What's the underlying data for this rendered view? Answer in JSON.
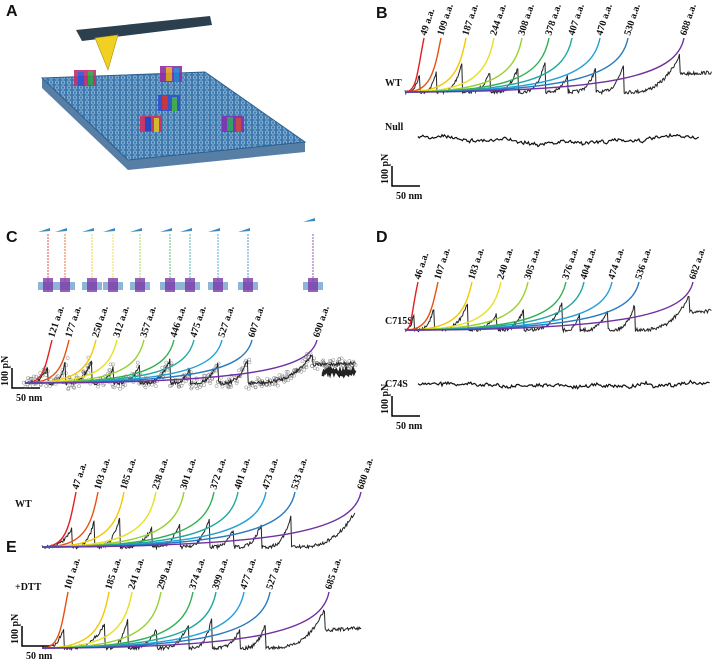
{
  "panels": {
    "A": {
      "label": "A"
    },
    "B": {
      "label": "B",
      "traces": [
        {
          "name": "WT",
          "peaks": [
            "49 a.a.",
            "109 a.a.",
            "187 a.a.",
            "244 a.a.",
            "308 a.a.",
            "378 a.a.",
            "407 a.a.",
            "470 a.a.",
            "530 a.a.",
            "688 a.a."
          ]
        },
        {
          "name": "Null"
        }
      ],
      "scale": {
        "force": "100 pN",
        "distance": "50 nm"
      }
    },
    "C": {
      "label": "C",
      "traces": [
        {
          "peaks": [
            "121 a.a.",
            "177 a.a.",
            "250 a.a.",
            "312 a.a.",
            "357 a.a.",
            "446 a.a.",
            "475 a.a.",
            "527 a.a.",
            "607 a.a.",
            "690 a.a."
          ]
        }
      ],
      "scale": {
        "force": "100 pN",
        "distance": "50 nm"
      }
    },
    "D": {
      "label": "D",
      "traces": [
        {
          "name": "C715S",
          "peaks": [
            "46 a.a.",
            "107 a.a.",
            "183 a.a.",
            "240 a.a.",
            "305 a.a.",
            "376 a.a.",
            "404 a.a.",
            "474 a.a.",
            "536 a.a.",
            "682 a.a."
          ]
        },
        {
          "name": "C74S"
        }
      ],
      "scale": {
        "force": "100 pN",
        "distance": "50 nm"
      }
    },
    "E": {
      "label": "E",
      "traces": [
        {
          "name": "WT",
          "peaks": [
            "47 a.a.",
            "103 a.a.",
            "185 a.a.",
            "238 a.a.",
            "301 a.a.",
            "372 a.a.",
            "401 a.a.",
            "473 a.a.",
            "533 a.a.",
            "680 a.a."
          ]
        },
        {
          "name": "+DTT",
          "peaks": [
            "101 a.a.",
            "185 a.a.",
            "241 a.a.",
            "299 a.a.",
            "374 a.a.",
            "399 a.a.",
            "477 a.a.",
            "527 a.a.",
            "685 a.a."
          ]
        }
      ],
      "scale": {
        "force": "100 pN",
        "distance": "50 nm"
      }
    }
  }
}
